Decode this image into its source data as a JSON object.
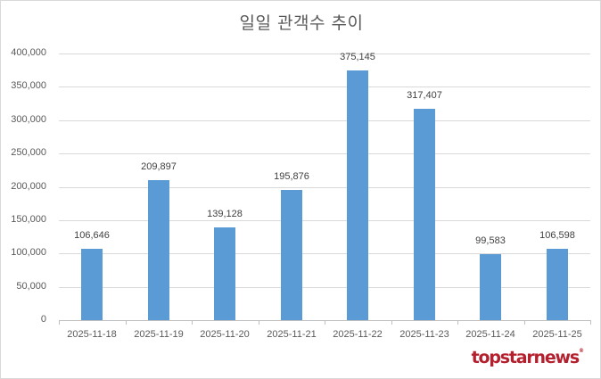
{
  "title": "일일 관객수 추이",
  "logo": "topstarnews",
  "colors": {
    "bar": "#5b9bd5",
    "logo": "#b5202e",
    "grid": "#d9d9d9",
    "text": "#595959"
  },
  "y_ticks": [
    "400,000",
    "350,000",
    "300,000",
    "250,000",
    "200,000",
    "150,000",
    "100,000",
    "50,000",
    "0"
  ],
  "bars": [
    {
      "date": "2025-11-18",
      "label": "106,646"
    },
    {
      "date": "2025-11-19",
      "label": "209,897"
    },
    {
      "date": "2025-11-20",
      "label": "139,128"
    },
    {
      "date": "2025-11-21",
      "label": "195,876"
    },
    {
      "date": "2025-11-22",
      "label": "375,145"
    },
    {
      "date": "2025-11-23",
      "label": "317,407"
    },
    {
      "date": "2025-11-24",
      "label": "99,583"
    },
    {
      "date": "2025-11-25",
      "label": "106,598"
    }
  ],
  "chart_data": {
    "type": "bar",
    "title": "일일 관객수 추이",
    "categories": [
      "2025-11-18",
      "2025-11-19",
      "2025-11-20",
      "2025-11-21",
      "2025-11-22",
      "2025-11-23",
      "2025-11-24",
      "2025-11-25"
    ],
    "values": [
      106646,
      209897,
      139128,
      195876,
      375145,
      317407,
      99583,
      106598
    ],
    "xlabel": "",
    "ylabel": "",
    "ylim": [
      0,
      400000
    ],
    "y_tick_step": 50000,
    "grid": true,
    "legend": null,
    "data_labels": true
  }
}
